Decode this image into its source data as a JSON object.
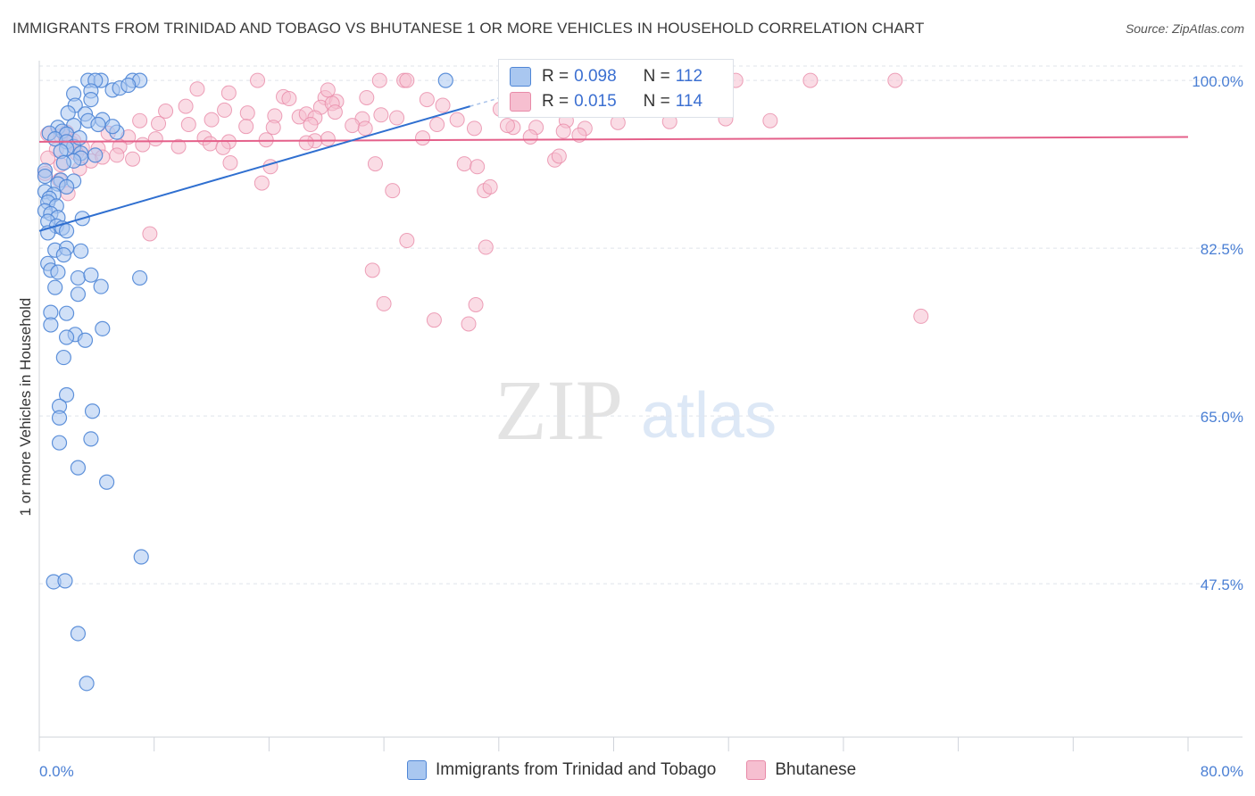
{
  "title": "IMMIGRANTS FROM TRINIDAD AND TOBAGO VS BHUTANESE 1 OR MORE VEHICLES IN HOUSEHOLD CORRELATION CHART",
  "source": "Source: ZipAtlas.com",
  "watermark": {
    "zip": "ZIP",
    "atlas": "atlas"
  },
  "legend": {
    "rows": [
      {
        "r_label": "R =",
        "r_value": "0.098",
        "n_label": "N =",
        "n_value": "112"
      },
      {
        "r_label": "R =",
        "r_value": "0.015",
        "n_label": "N =",
        "n_value": "114"
      }
    ]
  },
  "colors": {
    "blue_fill": "#a9c7f0",
    "blue_stroke": "#4f86d6",
    "blue_line": "#2f6fd0",
    "pink_fill": "#f6bfd0",
    "pink_stroke": "#e88aa8",
    "pink_line": "#e4608a",
    "axis_text": "#4a7fd4",
    "grid": "#dfe3ea"
  },
  "chart_data": {
    "type": "scatter",
    "xlabel": "",
    "ylabel": "1 or more Vehicles in Household",
    "xlim": [
      0,
      80
    ],
    "ylim": [
      31.5,
      101.5
    ],
    "x_tick_labels": [
      "0.0%",
      "80.0%"
    ],
    "y_ticks": [
      100,
      82.5,
      65,
      47.5
    ],
    "y_tick_labels": [
      "100.0%",
      "82.5%",
      "65.0%",
      "47.5%"
    ],
    "series": [
      {
        "name": "Immigrants from Trinidad and Tobago",
        "color": "blue",
        "trend": {
          "x": [
            0,
            30
          ],
          "y": [
            84.3,
            97.3
          ]
        },
        "trend_dashed": {
          "x": [
            30,
            34
          ],
          "y": [
            97.3,
            99.0
          ]
        },
        "points": [
          [
            3.4,
            100
          ],
          [
            4.3,
            100
          ],
          [
            3.9,
            100
          ],
          [
            6.5,
            100
          ],
          [
            7.0,
            100
          ],
          [
            28.3,
            100
          ],
          [
            3.6,
            98.9
          ],
          [
            5.1,
            99.0
          ],
          [
            5.6,
            99.2
          ],
          [
            6.2,
            99.5
          ],
          [
            2.4,
            98.6
          ],
          [
            3.6,
            98.0
          ],
          [
            2.5,
            97.4
          ],
          [
            3.2,
            96.5
          ],
          [
            2.0,
            96.6
          ],
          [
            3.4,
            95.8
          ],
          [
            4.4,
            95.9
          ],
          [
            4.1,
            95.4
          ],
          [
            2.4,
            95.3
          ],
          [
            1.3,
            95.1
          ],
          [
            1.6,
            94.7
          ],
          [
            1.9,
            94.4
          ],
          [
            0.7,
            94.5
          ],
          [
            5.4,
            94.6
          ],
          [
            1.1,
            93.9
          ],
          [
            1.9,
            93.6
          ],
          [
            2.4,
            93.1
          ],
          [
            1.9,
            92.9
          ],
          [
            1.5,
            92.6
          ],
          [
            2.9,
            92.4
          ],
          [
            3.9,
            92.2
          ],
          [
            2.9,
            91.9
          ],
          [
            2.4,
            91.6
          ],
          [
            1.7,
            91.4
          ],
          [
            0.4,
            90.6
          ],
          [
            0.4,
            90.0
          ],
          [
            1.5,
            89.6
          ],
          [
            2.4,
            89.5
          ],
          [
            1.3,
            89.2
          ],
          [
            1.9,
            88.9
          ],
          [
            0.4,
            88.4
          ],
          [
            1.0,
            88.1
          ],
          [
            0.7,
            87.7
          ],
          [
            0.6,
            87.3
          ],
          [
            1.2,
            86.9
          ],
          [
            0.4,
            86.4
          ],
          [
            0.8,
            86.1
          ],
          [
            1.3,
            85.7
          ],
          [
            3.0,
            85.6
          ],
          [
            0.6,
            85.3
          ],
          [
            1.2,
            84.8
          ],
          [
            1.6,
            84.6
          ],
          [
            0.6,
            84.1
          ],
          [
            1.9,
            84.3
          ],
          [
            1.1,
            82.3
          ],
          [
            1.9,
            82.5
          ],
          [
            2.9,
            82.2
          ],
          [
            0.6,
            80.9
          ],
          [
            0.8,
            80.2
          ],
          [
            1.3,
            80.0
          ],
          [
            1.7,
            81.8
          ],
          [
            2.7,
            79.4
          ],
          [
            3.6,
            79.7
          ],
          [
            7.0,
            79.4
          ],
          [
            1.1,
            78.4
          ],
          [
            4.3,
            78.5
          ],
          [
            2.7,
            77.7
          ],
          [
            0.8,
            75.8
          ],
          [
            1.9,
            75.7
          ],
          [
            0.8,
            74.5
          ],
          [
            2.5,
            73.5
          ],
          [
            4.4,
            74.1
          ],
          [
            1.9,
            73.2
          ],
          [
            3.2,
            72.9
          ],
          [
            1.7,
            71.1
          ],
          [
            1.9,
            67.2
          ],
          [
            1.4,
            66.0
          ],
          [
            1.4,
            64.8
          ],
          [
            3.7,
            65.5
          ],
          [
            1.4,
            62.2
          ],
          [
            3.6,
            62.6
          ],
          [
            2.7,
            59.6
          ],
          [
            4.7,
            58.1
          ],
          [
            7.1,
            50.3
          ],
          [
            1.0,
            47.7
          ],
          [
            1.8,
            47.8
          ],
          [
            2.7,
            42.3
          ],
          [
            3.3,
            37.1
          ],
          [
            5.1,
            95.2
          ],
          [
            2.8,
            94.0
          ]
        ]
      },
      {
        "name": "Bhutanese",
        "color": "pink",
        "trend": {
          "x": [
            0,
            80
          ],
          "y": [
            93.6,
            94.1
          ]
        },
        "points": [
          [
            15.2,
            100
          ],
          [
            23.7,
            100
          ],
          [
            25.4,
            100
          ],
          [
            25.6,
            100
          ],
          [
            38.3,
            100
          ],
          [
            39.6,
            100
          ],
          [
            43.0,
            100
          ],
          [
            53.7,
            100
          ],
          [
            59.6,
            100
          ],
          [
            48.5,
            100
          ],
          [
            11.0,
            99.1
          ],
          [
            13.2,
            98.7
          ],
          [
            17.0,
            98.3
          ],
          [
            17.4,
            98.1
          ],
          [
            19.9,
            98.2
          ],
          [
            20.7,
            97.8
          ],
          [
            22.8,
            98.2
          ],
          [
            27.0,
            98.0
          ],
          [
            28.1,
            97.4
          ],
          [
            19.6,
            97.2
          ],
          [
            20.4,
            97.6
          ],
          [
            8.8,
            96.8
          ],
          [
            10.2,
            97.3
          ],
          [
            12.9,
            96.9
          ],
          [
            14.5,
            96.6
          ],
          [
            16.4,
            96.3
          ],
          [
            18.1,
            96.2
          ],
          [
            18.6,
            96.5
          ],
          [
            19.2,
            96.1
          ],
          [
            20.6,
            96.7
          ],
          [
            22.5,
            96.0
          ],
          [
            23.8,
            96.4
          ],
          [
            24.9,
            96.1
          ],
          [
            29.1,
            95.9
          ],
          [
            33.0,
            95.1
          ],
          [
            36.7,
            95.8
          ],
          [
            40.3,
            95.6
          ],
          [
            43.9,
            95.7
          ],
          [
            47.8,
            96.0
          ],
          [
            50.9,
            95.8
          ],
          [
            7.0,
            95.8
          ],
          [
            8.3,
            95.5
          ],
          [
            10.4,
            95.4
          ],
          [
            12.0,
            95.9
          ],
          [
            14.4,
            95.2
          ],
          [
            16.3,
            95.1
          ],
          [
            18.9,
            95.4
          ],
          [
            21.8,
            95.3
          ],
          [
            22.7,
            95.0
          ],
          [
            27.7,
            95.4
          ],
          [
            30.3,
            95.0
          ],
          [
            34.6,
            95.1
          ],
          [
            36.5,
            94.7
          ],
          [
            38.0,
            95.0
          ],
          [
            4.8,
            94.5
          ],
          [
            6.2,
            94.1
          ],
          [
            8.1,
            93.9
          ],
          [
            11.5,
            94.0
          ],
          [
            13.2,
            93.6
          ],
          [
            15.8,
            93.8
          ],
          [
            19.2,
            93.7
          ],
          [
            20.1,
            93.9
          ],
          [
            26.7,
            94.0
          ],
          [
            34.2,
            94.1
          ],
          [
            37.6,
            94.3
          ],
          [
            0.6,
            94.4
          ],
          [
            1.5,
            94.2
          ],
          [
            1.9,
            94.6
          ],
          [
            2.2,
            93.5
          ],
          [
            3.0,
            93.0
          ],
          [
            4.1,
            92.9
          ],
          [
            5.6,
            93.1
          ],
          [
            7.2,
            93.3
          ],
          [
            9.7,
            93.1
          ],
          [
            11.9,
            93.4
          ],
          [
            12.8,
            93.0
          ],
          [
            18.6,
            93.5
          ],
          [
            1.2,
            92.8
          ],
          [
            2.6,
            92.4
          ],
          [
            5.4,
            92.2
          ],
          [
            0.6,
            91.9
          ],
          [
            3.6,
            91.6
          ],
          [
            6.5,
            91.8
          ],
          [
            1.5,
            91.2
          ],
          [
            2.8,
            90.8
          ],
          [
            13.3,
            91.4
          ],
          [
            16.1,
            91.0
          ],
          [
            23.4,
            91.3
          ],
          [
            29.6,
            91.3
          ],
          [
            30.5,
            91.0
          ],
          [
            35.9,
            91.7
          ],
          [
            36.2,
            92.1
          ],
          [
            0.4,
            90.3
          ],
          [
            1.4,
            89.6
          ],
          [
            2.0,
            88.2
          ],
          [
            15.5,
            89.3
          ],
          [
            24.6,
            88.5
          ],
          [
            31.0,
            88.5
          ],
          [
            31.4,
            88.9
          ],
          [
            7.7,
            84.0
          ],
          [
            25.6,
            83.3
          ],
          [
            31.1,
            82.6
          ],
          [
            23.2,
            80.2
          ],
          [
            24.0,
            76.7
          ],
          [
            30.4,
            76.6
          ],
          [
            29.9,
            74.6
          ],
          [
            27.5,
            75.0
          ],
          [
            61.4,
            75.4
          ],
          [
            20.1,
            99.0
          ],
          [
            32.1,
            97.0
          ],
          [
            32.6,
            95.3
          ],
          [
            1.8,
            94.2
          ],
          [
            2.4,
            93.7
          ],
          [
            4.4,
            92.0
          ]
        ]
      }
    ]
  },
  "bottom_legend": {
    "items": [
      {
        "label": "Immigrants from Trinidad and Tobago"
      },
      {
        "label": "Bhutanese"
      }
    ]
  }
}
